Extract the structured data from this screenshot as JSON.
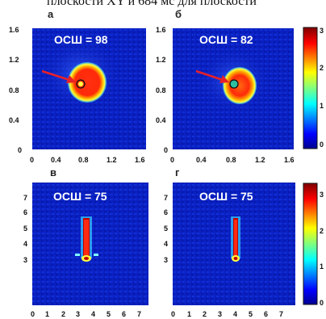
{
  "header_text": "плоскости XY и 684 мс для плоскости",
  "colorbar": {
    "ticks": [
      "0",
      "1",
      "2",
      "3"
    ],
    "range": [
      0,
      3.4
    ]
  },
  "panels": [
    {
      "id": "a",
      "letter": "а",
      "snr_label": "ОСШ = 98",
      "x_ticks": [
        "0",
        "0.4",
        "0.8",
        "1.2",
        "1.6"
      ],
      "y_ticks": [
        "0",
        "0.4",
        "0.8",
        "1.2",
        "1.6"
      ],
      "has_arrow": true
    },
    {
      "id": "b",
      "letter": "б",
      "snr_label": "ОСШ = 82",
      "x_ticks": [
        "0",
        "0.4",
        "0.8",
        "1.2",
        "1.6"
      ],
      "y_ticks": [
        "0",
        "0.4",
        "0.8",
        "1.2",
        "1.6"
      ],
      "has_arrow": true
    },
    {
      "id": "c",
      "letter": "в",
      "snr_label": "ОСШ = 75",
      "x_ticks": [
        "0",
        "1",
        "2",
        "3",
        "4",
        "5",
        "6",
        "7"
      ],
      "y_ticks": [
        "3",
        "4",
        "5",
        "6",
        "7"
      ],
      "has_arrow": false
    },
    {
      "id": "d",
      "letter": "г",
      "snr_label": "ОСШ = 75",
      "x_ticks": [
        "0",
        "1",
        "2",
        "3",
        "4",
        "5",
        "6",
        "7"
      ],
      "y_ticks": [
        "3",
        "4",
        "5",
        "6",
        "7"
      ],
      "has_arrow": false
    }
  ],
  "colors": {
    "background": "#0a1fbf",
    "arrow": "#e8202a",
    "marker_ring": "#111111"
  }
}
